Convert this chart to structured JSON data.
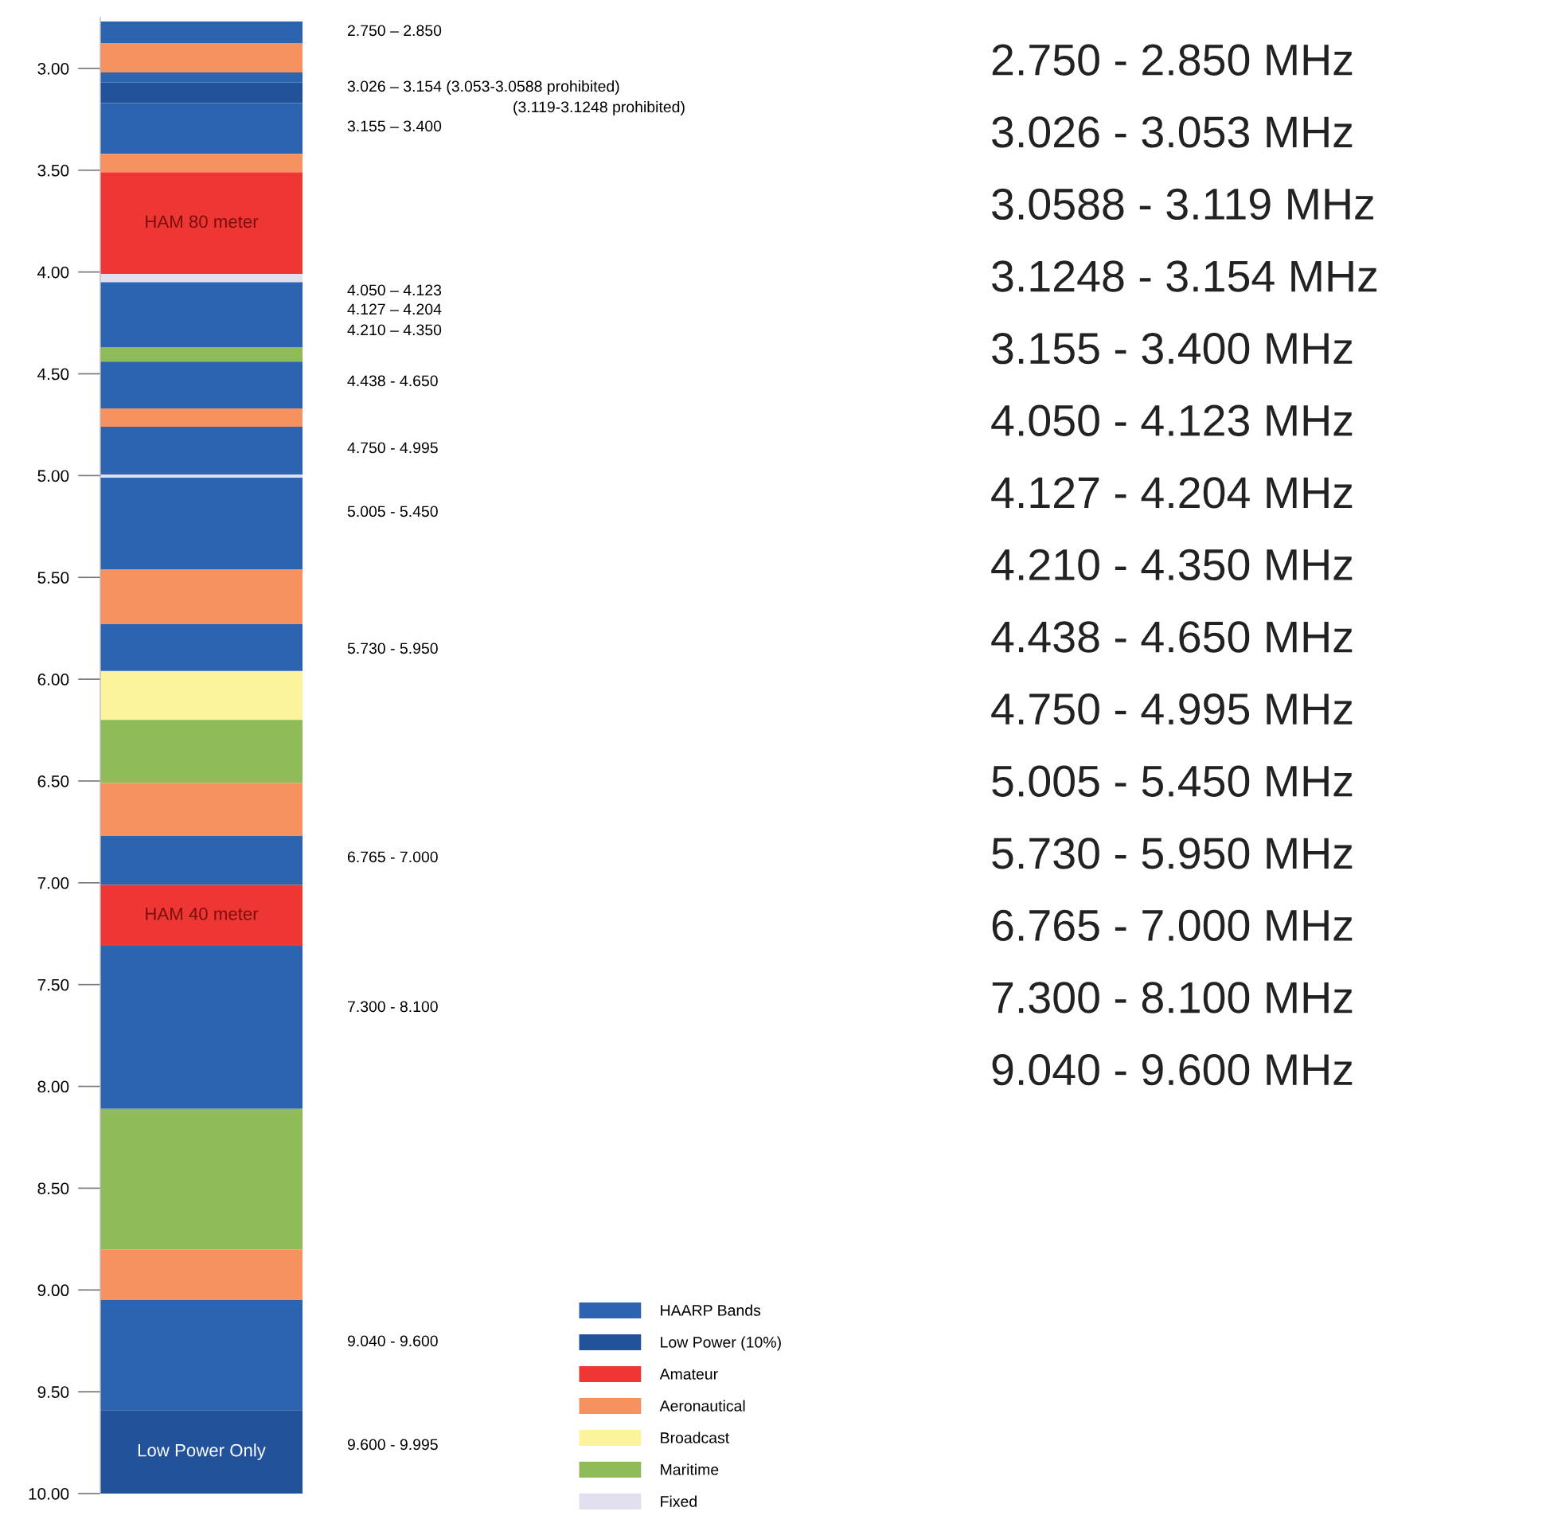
{
  "chart_data": {
    "type": "bar",
    "categories": [
      null
    ],
    "series": [
      {
        "name": "HAARP Bands",
        "color": "#2d64b0",
        "values": [
          0.105
        ],
        "base": [
          2.77
        ]
      },
      {
        "name": "Low Power (10%)",
        "color": "#22529a",
        "values": [
          0.1
        ],
        "base": [
          3.07
        ]
      },
      {
        "name": "Amateur",
        "color": "#ee3733",
        "values": [
          0.5
        ],
        "base": [
          3.51
        ],
        "value_labels": [
          "HAM 80 meter"
        ]
      },
      {
        "name": "Aeronautical",
        "color": "#f6925f",
        "values": [
          0.145
        ],
        "base": [
          2.875
        ]
      },
      {
        "name": "Broadcast",
        "color": "#fbf49c",
        "values": [
          0.24
        ],
        "base": [
          5.96
        ]
      },
      {
        "name": "Maritime",
        "color": "#8fbb58",
        "values": [
          0.07
        ],
        "base": [
          4.37
        ]
      },
      {
        "name": "Fixed",
        "color": "#e0e0f0",
        "values": [
          0.04
        ],
        "base": [
          4.01
        ]
      },
      {
        "color": "#2d64b0",
        "values": [
          0.05
        ],
        "base": [
          3.02
        ]
      },
      {
        "color": "#2d64b0",
        "values": [
          0.25
        ],
        "base": [
          3.17
        ]
      },
      {
        "color": "#f6925f",
        "values": [
          0.09
        ],
        "base": [
          3.42
        ]
      },
      {
        "color": "#2d64b0",
        "values": [
          0.32
        ],
        "base": [
          4.05
        ]
      },
      {
        "color": "#2d64b0",
        "values": [
          0.23
        ],
        "base": [
          4.44
        ]
      },
      {
        "color": "#f6925f",
        "values": [
          0.09
        ],
        "base": [
          4.67
        ]
      },
      {
        "color": "#2d64b0",
        "values": [
          0.235
        ],
        "base": [
          4.76
        ]
      },
      {
        "color": "#e0e0f0",
        "values": [
          0.015
        ],
        "base": [
          4.995
        ]
      },
      {
        "color": "#2d64b0",
        "values": [
          0.45
        ],
        "base": [
          5.01
        ]
      },
      {
        "color": "#f6925f",
        "values": [
          0.27
        ],
        "base": [
          5.46
        ]
      },
      {
        "color": "#2d64b0",
        "values": [
          0.23
        ],
        "base": [
          5.73
        ]
      },
      {
        "color": "#8fbb58",
        "values": [
          0.31
        ],
        "base": [
          6.2
        ]
      },
      {
        "color": "#f6925f",
        "values": [
          0.26
        ],
        "base": [
          6.51
        ]
      },
      {
        "color": "#2d64b0",
        "values": [
          0.24
        ],
        "base": [
          6.77
        ]
      },
      {
        "color": "#ee3733",
        "values": [
          0.3
        ],
        "base": [
          7.01
        ],
        "value_labels": [
          "HAM 40 meter"
        ]
      },
      {
        "color": "#2d64b0",
        "values": [
          0.8
        ],
        "base": [
          7.31
        ]
      },
      {
        "color": "#8fbb58",
        "values": [
          0.69
        ],
        "base": [
          8.11
        ]
      },
      {
        "color": "#f6925f",
        "values": [
          0.25
        ],
        "base": [
          8.8
        ]
      },
      {
        "color": "#2d64b0",
        "values": [
          0.54
        ],
        "base": [
          9.05
        ]
      },
      {
        "color": "#22529a",
        "values": [
          0.41
        ],
        "base": [
          9.59
        ],
        "value_labels": [
          "Low Power Only"
        ]
      }
    ],
    "ylim": [
      10.0,
      2.75
    ],
    "yticks": [
      {
        "value": 3.0,
        "label": "3.00"
      },
      {
        "value": 3.5,
        "label": "3.50"
      },
      {
        "value": 4.0,
        "label": "4.00"
      },
      {
        "value": 4.5,
        "label": "4.50"
      },
      {
        "value": 5.0,
        "label": "5.00"
      },
      {
        "value": 5.5,
        "label": "5.50"
      },
      {
        "value": 6.0,
        "label": "6.00"
      },
      {
        "value": 6.5,
        "label": "6.50"
      },
      {
        "value": 7.0,
        "label": "7.00"
      },
      {
        "value": 7.5,
        "label": "7.50"
      },
      {
        "value": 8.0,
        "label": "8.00"
      },
      {
        "value": 8.5,
        "label": "8.50"
      },
      {
        "value": 9.0,
        "label": "9.00"
      },
      {
        "value": 9.5,
        "label": "9.50"
      },
      {
        "value": 10.0,
        "label": "10.00"
      }
    ],
    "tick_labels": "y",
    "grid": false,
    "legend": "bottom right",
    "annotations": [
      "2.750 – 2.850",
      "3.026 – 3.154 (3.053-3.0588 prohibited)",
      "(3.119-3.1248 prohibited)",
      "3.155 – 3.400",
      "4.050 – 4.123",
      "4.127 – 4.204",
      "4.210 – 4.350",
      "4.438 - 4.650",
      "4.750 - 4.995",
      "5.005 - 5.450",
      "5.730 - 5.950",
      "6.765 - 7.000",
      "7.300 - 8.100",
      "9.040 - 9.600",
      "9.600 - 9.995",
      "2.750 - 2.850 MHz",
      "3.026 - 3.053 MHz",
      "3.0588 - 3.119 MHz",
      "3.1248 - 3.154 MHz",
      "3.155 - 3.400 MHz",
      "4.050 - 4.123 MHz",
      "4.127 - 4.204 MHz",
      "4.210 - 4.350 MHz",
      "4.438 - 4.650 MHz",
      "4.750 - 4.995 MHz",
      "5.005 - 5.450 MHz",
      "5.730 - 5.950 MHz",
      "6.765 - 7.000 MHz",
      "7.300 - 8.100 MHz",
      "9.040 - 9.600 MHz"
    ]
  }
}
